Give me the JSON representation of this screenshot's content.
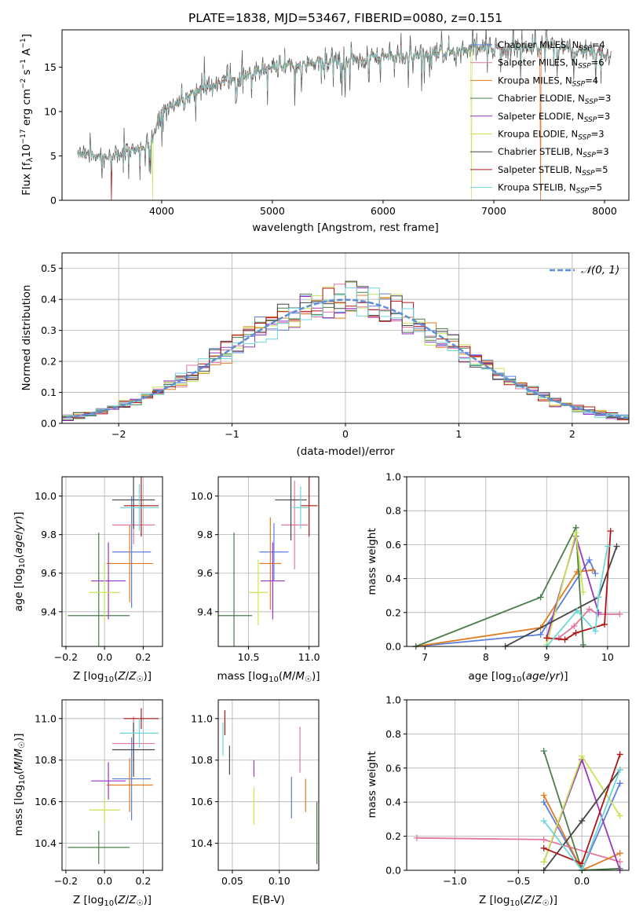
{
  "chart_data": [
    {
      "type": "line",
      "title": "PLATE=1838, MJD=53467, FIBERID=0080, z=0.151",
      "xlabel": "wavelength [Angstrom, rest frame]",
      "ylabel": "Flux [fλ10⁻¹⁷ erg cm⁻² s⁻¹ A⁻¹]",
      "xlim": [
        3100,
        8220
      ],
      "ylim": [
        0,
        19.2
      ],
      "xticks": [
        "4000",
        "5000",
        "6000",
        "7000",
        "8000"
      ],
      "xtick_values": [
        4000,
        5000,
        6000,
        7000,
        8000
      ],
      "yticks": [
        "0",
        "5",
        "10",
        "15"
      ],
      "ytick_values": [
        0,
        5,
        10,
        15
      ],
      "grid": false,
      "legend_position": "top-right",
      "continuum": {
        "x": [
          3240,
          3500,
          3700,
          3800,
          3900,
          3950,
          4000,
          4150,
          4300,
          4500,
          4700,
          4900,
          5100,
          5300,
          5500,
          5700,
          5900,
          6100,
          6300,
          6500,
          6700,
          6900,
          7100,
          7300,
          7500,
          7700,
          7900,
          8060
        ],
        "y": [
          5.1,
          4.9,
          5.4,
          5.8,
          6.4,
          8.5,
          10.0,
          11.0,
          12.2,
          13.1,
          13.9,
          14.6,
          15.1,
          15.3,
          15.6,
          15.7,
          16.1,
          16.2,
          16.4,
          16.6,
          16.9,
          17.1,
          17.1,
          17.2,
          17.3,
          17.0,
          16.7,
          16.3
        ]
      },
      "drops": [
        {
          "x": 3545,
          "series": [
            1,
            7
          ]
        },
        {
          "x": 3920,
          "series": [
            5
          ]
        },
        {
          "x": 6800,
          "series": [
            5
          ]
        },
        {
          "x": 7420,
          "series": [
            1,
            2
          ]
        }
      ],
      "series": [
        {
          "name": "Chabrier MILES, N_SSP=4",
          "name_main": "Chabrier MILES, N",
          "name_sub": "SSP",
          "name_end": "=4",
          "color": "#5b7fde"
        },
        {
          "name": "Salpeter MILES, N_SSP=6",
          "name_main": "Salpeter MILES, N",
          "name_sub": "SSP",
          "name_end": "=6",
          "color": "#e2769f"
        },
        {
          "name": "Kroupa MILES, N_SSP=4",
          "name_main": "Kroupa MILES, N",
          "name_sub": "SSP",
          "name_end": "=4",
          "color": "#e07b1f"
        },
        {
          "name": "Chabrier ELODIE, N_SSP=3",
          "name_main": "Chabrier ELODIE, N",
          "name_sub": "SSP",
          "name_end": "=3",
          "color": "#4a7d4a"
        },
        {
          "name": "Salpeter ELODIE, N_SSP=3",
          "name_main": "Salpeter ELODIE, N",
          "name_sub": "SSP",
          "name_end": "=3",
          "color": "#9a35c4"
        },
        {
          "name": "Kroupa ELODIE, N_SSP=3",
          "name_main": "Kroupa ELODIE, N",
          "name_sub": "SSP",
          "name_end": "=3",
          "color": "#c9e353"
        },
        {
          "name": "Chabrier STELIB, N_SSP=3",
          "name_main": "Chabrier STELIB, N",
          "name_sub": "SSP",
          "name_end": "=3",
          "color": "#444444"
        },
        {
          "name": "Salpeter STELIB, N_SSP=5",
          "name_main": "Salpeter STELIB, N",
          "name_sub": "SSP",
          "name_end": "=5",
          "color": "#b01515"
        },
        {
          "name": "Kroupa STELIB, N_SSP=5",
          "name_main": "Kroupa STELIB, N",
          "name_sub": "SSP",
          "name_end": "=5",
          "color": "#6fd6d6"
        }
      ]
    },
    {
      "type": "line",
      "xlabel": "(data-model)/error",
      "ylabel": "Normed distribution",
      "xlim": [
        -2.5,
        2.5
      ],
      "ylim": [
        0,
        0.55
      ],
      "xticks": [
        "−2",
        "−1",
        "0",
        "1",
        "2"
      ],
      "xtick_values": [
        -2,
        -1,
        0,
        1,
        2
      ],
      "yticks": [
        "0.0",
        "0.1",
        "0.2",
        "0.3",
        "0.4",
        "0.5"
      ],
      "ytick_values": [
        0,
        0.1,
        0.2,
        0.3,
        0.4,
        0.5
      ],
      "grid": true,
      "legend_position": "top-right",
      "normal_curve": {
        "label": "𝒩(0, 1)",
        "color": "#5b8fd6",
        "style": "dashed",
        "mean": 0,
        "sigma": 1
      },
      "histogram": {
        "bin_start": -2.5,
        "bin_width": 0.1,
        "bins": 50,
        "style": "step",
        "series_colors_from": "spectrum legend"
      }
    },
    {
      "type": "scatter",
      "xlabel": "Z [log₁₀(Z/Z☉)]",
      "ylabel": "age  [log₁₀(age/yr)]",
      "xlim": [
        -0.22,
        0.3
      ],
      "ylim": [
        9.22,
        10.1
      ],
      "xticks": [
        "−0.2",
        "0.0",
        "0.2"
      ],
      "xtick_values": [
        -0.2,
        0,
        0.2
      ],
      "yticks": [
        "9.4",
        "9.6",
        "9.8",
        "10.0"
      ],
      "ytick_values": [
        9.4,
        9.6,
        9.8,
        10.0
      ],
      "grid": true,
      "points": [
        {
          "x": 0.14,
          "xerr": 0.1,
          "y": 9.71,
          "yerr": 0.29,
          "color": "#5b7fde"
        },
        {
          "x": 0.15,
          "xerr": 0.11,
          "y": 9.85,
          "yerr": 0.1,
          "color": "#e2769f"
        },
        {
          "x": 0.13,
          "xerr": 0.12,
          "y": 9.65,
          "yerr": 0.2,
          "color": "#e07b1f"
        },
        {
          "x": -0.03,
          "xerr": 0.16,
          "y": 9.38,
          "yerr": 0.43,
          "color": "#4a7d4a"
        },
        {
          "x": 0.02,
          "xerr": 0.09,
          "y": 9.56,
          "yerr": 0.2,
          "color": "#9a35c4"
        },
        {
          "x": 0.0,
          "xerr": 0.08,
          "y": 9.5,
          "yerr": 0.15,
          "color": "#c9e353"
        },
        {
          "x": 0.15,
          "xerr": 0.11,
          "y": 9.98,
          "yerr": 0.15,
          "color": "#444444"
        },
        {
          "x": 0.19,
          "xerr": 0.09,
          "y": 9.95,
          "yerr": 0.16,
          "color": "#b01515"
        },
        {
          "x": 0.18,
          "xerr": 0.1,
          "y": 9.94,
          "yerr": 0.12,
          "color": "#6fd6d6"
        }
      ]
    },
    {
      "type": "scatter",
      "xlabel": "mass [log₁₀(M/M☉)]",
      "ylabel": "",
      "xlim": [
        10.25,
        11.08
      ],
      "ylim": [
        9.22,
        10.1
      ],
      "xticks": [
        "10.5",
        "11.0"
      ],
      "xtick_values": [
        10.5,
        11.0
      ],
      "yticks": [
        "9.4",
        "9.6",
        "9.8",
        "10.0"
      ],
      "ytick_values": [
        9.4,
        9.6,
        9.8,
        10.0
      ],
      "grid": true,
      "points": [
        {
          "x": 10.71,
          "xerr": 0.12,
          "y": 9.71,
          "yerr": 0.15,
          "color": "#5b7fde"
        },
        {
          "x": 10.88,
          "xerr": 0.11,
          "y": 9.85,
          "yerr": 0.23,
          "color": "#e2769f"
        },
        {
          "x": 10.68,
          "xerr": 0.09,
          "y": 9.65,
          "yerr": 0.24,
          "color": "#e07b1f"
        },
        {
          "x": 10.38,
          "xerr": 0.15,
          "y": 9.38,
          "yerr": 0.43,
          "color": "#4a7d4a"
        },
        {
          "x": 10.7,
          "xerr": 0.1,
          "y": 9.56,
          "yerr": 0.2,
          "color": "#9a35c4"
        },
        {
          "x": 10.58,
          "xerr": 0.08,
          "y": 9.5,
          "yerr": 0.17,
          "color": "#c9e353"
        },
        {
          "x": 10.85,
          "xerr": 0.13,
          "y": 9.98,
          "yerr": 0.21,
          "color": "#444444"
        },
        {
          "x": 11.0,
          "xerr": 0.07,
          "y": 9.95,
          "yerr": 0.16,
          "color": "#b01515"
        },
        {
          "x": 10.93,
          "xerr": 0.07,
          "y": 9.94,
          "yerr": 0.11,
          "color": "#6fd6d6"
        }
      ]
    },
    {
      "type": "line",
      "xlabel": "age  [log₁₀(age/yr)]",
      "ylabel": "mass weight",
      "xlim": [
        6.7,
        10.35
      ],
      "ylim": [
        0,
        1
      ],
      "xticks": [
        "7",
        "8",
        "9",
        "10"
      ],
      "xtick_values": [
        7,
        8,
        9,
        10
      ],
      "yticks": [
        "0.0",
        "0.2",
        "0.4",
        "0.6",
        "0.8",
        "1.0"
      ],
      "ytick_values": [
        0,
        0.2,
        0.4,
        0.6,
        0.8,
        1.0
      ],
      "grid": true,
      "series": [
        {
          "color": "#5b7fde",
          "x": [
            6.85,
            8.9,
            9.7,
            9.8
          ],
          "y": [
            0.0,
            0.07,
            0.51,
            0.43
          ]
        },
        {
          "color": "#e2769f",
          "x": [
            9.2,
            9.45,
            9.7,
            9.85,
            10.2
          ],
          "y": [
            0.05,
            0.12,
            0.22,
            0.19,
            0.19
          ]
        },
        {
          "color": "#e07b1f",
          "x": [
            6.85,
            8.9,
            9.5,
            9.75
          ],
          "y": [
            0.0,
            0.11,
            0.44,
            0.45
          ]
        },
        {
          "color": "#4a7d4a",
          "x": [
            6.85,
            8.9,
            9.48,
            9.6
          ],
          "y": [
            0.0,
            0.29,
            0.7,
            0.01
          ]
        },
        {
          "color": "#9a35c4",
          "x": [
            9.0,
            9.48,
            9.85
          ],
          "y": [
            0.05,
            0.65,
            0.2
          ]
        },
        {
          "color": "#c9e353",
          "x": [
            9.0,
            9.48,
            9.6
          ],
          "y": [
            0.01,
            0.67,
            0.32
          ]
        },
        {
          "color": "#444444",
          "x": [
            8.32,
            9.85,
            10.15
          ],
          "y": [
            0.0,
            0.29,
            0.59
          ]
        },
        {
          "color": "#b01515",
          "x": [
            9.0,
            9.3,
            9.48,
            9.95,
            10.05
          ],
          "y": [
            0.05,
            0.04,
            0.08,
            0.13,
            0.68
          ]
        },
        {
          "color": "#6fd6d6",
          "x": [
            9.0,
            9.5,
            9.8,
            9.85,
            10.0
          ],
          "y": [
            0.0,
            0.21,
            0.09,
            0.29,
            0.59
          ]
        }
      ]
    },
    {
      "type": "scatter",
      "xlabel": "Z [log₁₀(Z/Z☉)]",
      "ylabel": "mass [log₁₀(M/M☉)]",
      "xlim": [
        -0.22,
        0.3
      ],
      "ylim": [
        10.27,
        11.09
      ],
      "xticks": [
        "−0.2",
        "0.0",
        "0.2"
      ],
      "xtick_values": [
        -0.2,
        0,
        0.2
      ],
      "yticks": [
        "10.4",
        "10.6",
        "10.8",
        "11.0"
      ],
      "ytick_values": [
        10.4,
        10.6,
        10.8,
        11.0
      ],
      "grid": true,
      "points": [
        {
          "x": 0.14,
          "xerr": 0.1,
          "y": 10.71,
          "yerr": 0.2,
          "color": "#5b7fde"
        },
        {
          "x": 0.15,
          "xerr": 0.11,
          "y": 10.88,
          "yerr": 0.13,
          "color": "#e2769f"
        },
        {
          "x": 0.13,
          "xerr": 0.12,
          "y": 10.68,
          "yerr": 0.13,
          "color": "#e07b1f"
        },
        {
          "x": -0.03,
          "xerr": 0.16,
          "y": 10.38,
          "yerr": 0.08,
          "color": "#4a7d4a"
        },
        {
          "x": 0.02,
          "xerr": 0.09,
          "y": 10.7,
          "yerr": 0.09,
          "color": "#9a35c4"
        },
        {
          "x": 0.0,
          "xerr": 0.08,
          "y": 10.56,
          "yerr": 0.06,
          "color": "#c9e353"
        },
        {
          "x": 0.15,
          "xerr": 0.11,
          "y": 10.85,
          "yerr": 0.13,
          "color": "#444444"
        },
        {
          "x": 0.19,
          "xerr": 0.09,
          "y": 11.0,
          "yerr": 0.05,
          "color": "#b01515"
        },
        {
          "x": 0.18,
          "xerr": 0.1,
          "y": 10.93,
          "yerr": 0.07,
          "color": "#6fd6d6"
        }
      ]
    },
    {
      "type": "scatter",
      "xlabel": "E(B-V)",
      "ylabel": "",
      "xlim": [
        0.035,
        0.142
      ],
      "ylim": [
        10.27,
        11.09
      ],
      "xticks": [
        "0.05",
        "0.10"
      ],
      "xtick_values": [
        0.05,
        0.1
      ],
      "yticks": [
        "10.4",
        "10.6",
        "10.8",
        "11.0"
      ],
      "ytick_values": [
        10.4,
        10.6,
        10.8,
        11.0
      ],
      "grid": true,
      "points": [
        {
          "x": 0.113,
          "y": 10.62,
          "yerr": 0.1,
          "color": "#5b7fde"
        },
        {
          "x": 0.122,
          "y": 10.85,
          "yerr": 0.11,
          "color": "#e2769f"
        },
        {
          "x": 0.128,
          "y": 10.63,
          "yerr": 0.08,
          "color": "#e07b1f"
        },
        {
          "x": 0.14,
          "y": 10.45,
          "yerr": 0.15,
          "color": "#4a7d4a"
        },
        {
          "x": 0.073,
          "y": 10.76,
          "yerr": 0.04,
          "color": "#9a35c4"
        },
        {
          "x": 0.073,
          "y": 10.58,
          "yerr": 0.09,
          "color": "#c9e353"
        },
        {
          "x": 0.047,
          "y": 10.8,
          "yerr": 0.07,
          "color": "#444444"
        },
        {
          "x": 0.042,
          "y": 10.98,
          "yerr": 0.06,
          "color": "#b01515"
        },
        {
          "x": 0.04,
          "y": 10.9,
          "yerr": 0.08,
          "color": "#6fd6d6"
        }
      ]
    },
    {
      "type": "line",
      "xlabel": "Z [log₁₀(Z/Z☉)]",
      "ylabel": "mass weight",
      "xlim": [
        -1.38,
        0.37
      ],
      "ylim": [
        0,
        1
      ],
      "xticks": [
        "−1.0",
        "−0.5",
        "0.0"
      ],
      "xtick_values": [
        -1.0,
        -0.5,
        0.0
      ],
      "yticks": [
        "0.0",
        "0.2",
        "0.4",
        "0.6",
        "0.8",
        "1.0"
      ],
      "ytick_values": [
        0,
        0.2,
        0.4,
        0.6,
        0.8,
        1.0
      ],
      "grid": true,
      "series": [
        {
          "color": "#5b7fde",
          "x": [
            -0.3,
            0.0,
            0.3
          ],
          "y": [
            0.4,
            0.0,
            0.51
          ]
        },
        {
          "color": "#e2769f",
          "x": [
            -1.3,
            -0.3,
            0.3
          ],
          "y": [
            0.19,
            0.18,
            0.05
          ]
        },
        {
          "color": "#e07b1f",
          "x": [
            -0.3,
            0.0,
            0.3
          ],
          "y": [
            0.44,
            0.0,
            0.1
          ]
        },
        {
          "color": "#4a7d4a",
          "x": [
            -0.3,
            0.0,
            0.3
          ],
          "y": [
            0.7,
            0.0,
            0.01
          ]
        },
        {
          "color": "#9a35c4",
          "x": [
            -0.3,
            0.0,
            0.3
          ],
          "y": [
            0.05,
            0.65,
            0.0
          ]
        },
        {
          "color": "#c9e353",
          "x": [
            -0.3,
            0.0,
            0.3
          ],
          "y": [
            0.05,
            0.67,
            0.32
          ]
        },
        {
          "color": "#444444",
          "x": [
            -0.3,
            0.0,
            0.3
          ],
          "y": [
            0.0,
            0.29,
            0.59
          ]
        },
        {
          "color": "#b01515",
          "x": [
            -0.3,
            0.0,
            0.3
          ],
          "y": [
            0.13,
            0.04,
            0.68
          ]
        },
        {
          "color": "#6fd6d6",
          "x": [
            -0.3,
            0.0,
            0.3
          ],
          "y": [
            0.29,
            0.0,
            0.59
          ]
        }
      ]
    }
  ]
}
